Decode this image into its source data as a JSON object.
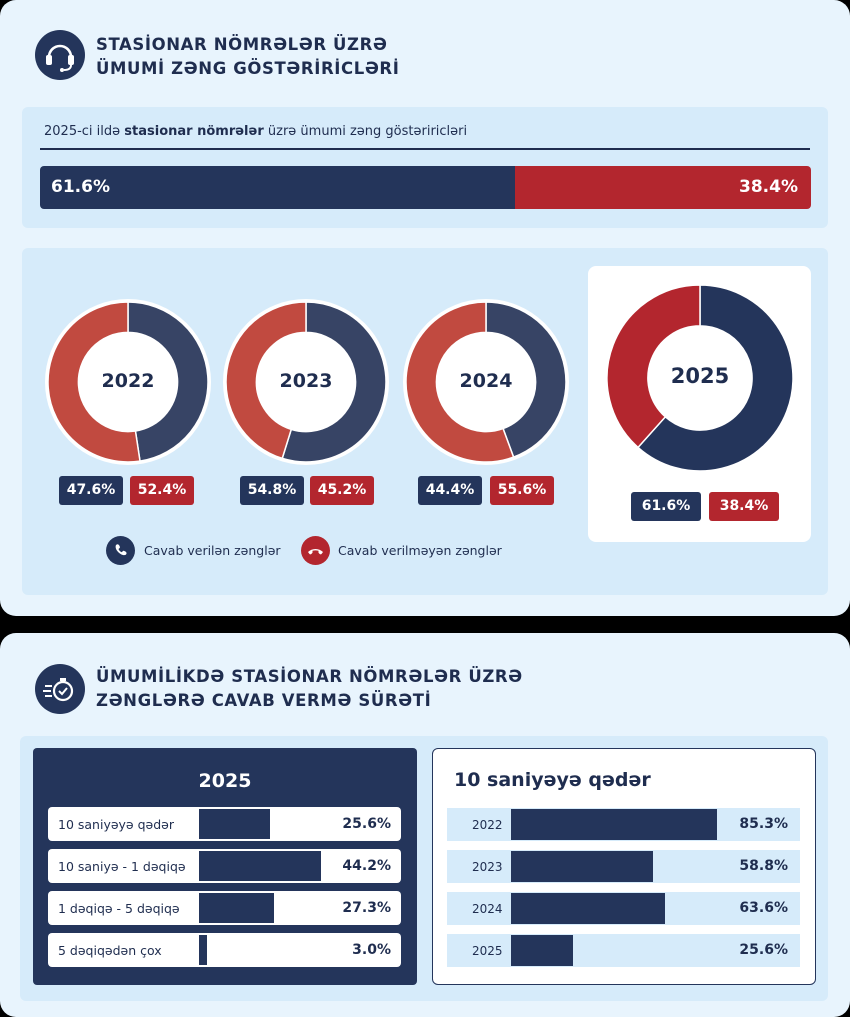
{
  "section1": {
    "title_line1": "STASİONAR NÖMRƏLƏR ÜZRƏ",
    "title_line2": "ÜMUMİ ZƏNG GÖSTƏRİRİCLƏRİ",
    "icon": "headset-icon",
    "caption_pre": "2025-ci ildə",
    "caption_bold": "stasionar nömrələr",
    "caption_post": "üzrə ümumi zəng göstəriricləri",
    "stack_answered_label": "61.6%",
    "stack_unanswered_label": "38.4%",
    "legend_answered": "Cavab verilən zənglər",
    "legend_unanswered": "Cavab verilməyən zənglər"
  },
  "section2": {
    "title_line1": "ÜMUMİLİKDƏ STASİONAR NÖMRƏLƏR ÜZRƏ",
    "title_line2": "ZƏNGLƏRƏ CAVAB VERMƏ SÜRƏTİ",
    "icon": "fast-clock-icon",
    "left_title": "2025",
    "right_title": "10 saniyəyə qədər"
  },
  "colors": {
    "answered": "#24355b",
    "unanswered": "#b3262e",
    "donut_answered": "#374465",
    "donut_unanswered": "#c14a40",
    "background": "#e8f4fd",
    "panel": "#d6ebfa"
  },
  "chart_data": [
    {
      "type": "bar",
      "stacked": true,
      "series": [
        {
          "name": "Cavab verilən zənglər",
          "values": [
            61.6
          ],
          "label": "61.6%"
        },
        {
          "name": "Cavab verilməyən zənglər",
          "values": [
            38.4
          ],
          "label": "38.4%"
        }
      ]
    },
    {
      "type": "pie",
      "donut": true,
      "charts": [
        {
          "year": "2022",
          "answered": 47.6,
          "unanswered": 52.4,
          "answered_label": "47.6%",
          "unanswered_label": "52.4%"
        },
        {
          "year": "2023",
          "answered": 54.8,
          "unanswered": 45.2,
          "answered_label": "54.8%",
          "unanswered_label": "45.2%"
        },
        {
          "year": "2024",
          "answered": 44.4,
          "unanswered": 55.6,
          "answered_label": "44.4%",
          "unanswered_label": "55.6%"
        },
        {
          "year": "2025",
          "answered": 61.6,
          "unanswered": 38.4,
          "answered_label": "61.6%",
          "unanswered_label": "38.4%"
        }
      ]
    },
    {
      "type": "bar",
      "orientation": "horizontal",
      "title": "2025",
      "categories": [
        "10 saniyəyə qədər",
        "10 saniyə - 1 dəqiqə",
        "1 dəqiqə - 5 dəqiqə",
        "5 dəqiqədən çox"
      ],
      "values": [
        25.6,
        44.2,
        27.3,
        3.0
      ],
      "value_labels": [
        "25.6%",
        "44.2%",
        "27.3%",
        "3.0%"
      ]
    },
    {
      "type": "bar",
      "orientation": "horizontal",
      "title": "10 saniyəyə qədər",
      "categories": [
        "2022",
        "2023",
        "2024",
        "2025"
      ],
      "values": [
        85.3,
        58.8,
        63.6,
        25.6
      ],
      "value_labels": [
        "85.3%",
        "58.8%",
        "63.6%",
        "25.6%"
      ]
    }
  ]
}
